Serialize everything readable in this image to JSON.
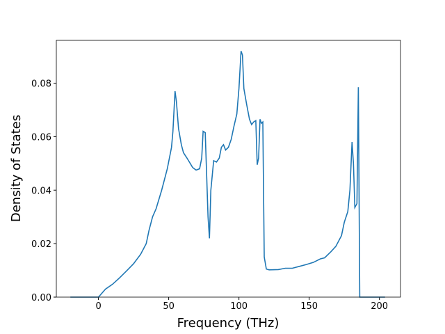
{
  "chart_data": {
    "type": "line",
    "xlabel": "Frequency (THz)",
    "ylabel": "Density of States",
    "xlim": [
      -30,
      215
    ],
    "ylim": [
      0,
      0.096
    ],
    "xticks": [
      0,
      50,
      100,
      150,
      200
    ],
    "yticks": [
      {
        "value": 0,
        "label": "0.00"
      },
      {
        "value": 0.02,
        "label": "0.02"
      },
      {
        "value": 0.04,
        "label": "0.04"
      },
      {
        "value": 0.06,
        "label": "0.06"
      },
      {
        "value": 0.08,
        "label": "0.08"
      }
    ],
    "x": [
      -20,
      0,
      5,
      10,
      15,
      20,
      25,
      30,
      34,
      36,
      38.5,
      41,
      45,
      49,
      52,
      53,
      54.5,
      55.5,
      57,
      59,
      60.5,
      63,
      67,
      69.5,
      72,
      73.5,
      74.5,
      76,
      78,
      79,
      80,
      82,
      84,
      86,
      87.5,
      89,
      90.5,
      92.5,
      94.5,
      96.5,
      98.5,
      100,
      101.5,
      102.5,
      103.5,
      105.5,
      107.5,
      109,
      110.5,
      112,
      113,
      114,
      115,
      116,
      117,
      118,
      119.5,
      121.5,
      128,
      133,
      138,
      143,
      148,
      153,
      158,
      161,
      165.5,
      169,
      173,
      175,
      177.5,
      179,
      180.5,
      181.5,
      182.5,
      184,
      185,
      186,
      200,
      204
    ],
    "series": [
      {
        "color": "#1f77b4",
        "values": [
          0,
          0,
          0.003,
          0.0048,
          0.0072,
          0.0098,
          0.0125,
          0.016,
          0.02,
          0.025,
          0.03,
          0.033,
          0.04,
          0.048,
          0.056,
          0.062,
          0.077,
          0.073,
          0.063,
          0.057,
          0.054,
          0.052,
          0.0485,
          0.0475,
          0.048,
          0.052,
          0.062,
          0.0615,
          0.03,
          0.022,
          0.04,
          0.051,
          0.0505,
          0.052,
          0.056,
          0.057,
          0.055,
          0.056,
          0.059,
          0.064,
          0.0685,
          0.078,
          0.092,
          0.0905,
          0.078,
          0.072,
          0.0665,
          0.0645,
          0.0655,
          0.066,
          0.0495,
          0.052,
          0.0665,
          0.065,
          0.0655,
          0.015,
          0.0105,
          0.0102,
          0.0103,
          0.0108,
          0.0108,
          0.0115,
          0.0122,
          0.013,
          0.0143,
          0.0147,
          0.017,
          0.019,
          0.023,
          0.028,
          0.032,
          0.04,
          0.058,
          0.05,
          0.0335,
          0.035,
          0.0785,
          0,
          0,
          0
        ]
      }
    ]
  }
}
